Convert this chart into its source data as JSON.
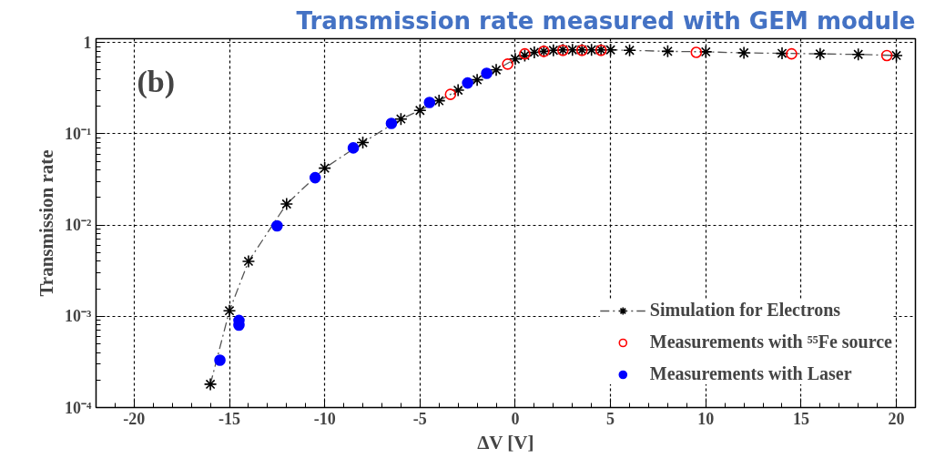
{
  "chart_data": {
    "type": "line",
    "title": "Transmission rate measured with GEM module",
    "xlabel": "ΔV [V]",
    "ylabel": "Transmission rate",
    "annotations": [
      "(b)"
    ],
    "log": "y",
    "grid": true,
    "legend": "bottom right",
    "xlim": [
      -22,
      21
    ],
    "xticks": [
      -20,
      -15,
      -10,
      -5,
      0,
      5,
      10,
      15,
      20
    ],
    "ylim": [
      0.0001,
      1.1
    ],
    "yticks": [
      {
        "value": 0.0001,
        "label": "10⁻⁴"
      },
      {
        "value": 0.001,
        "label": "10⁻³"
      },
      {
        "value": 0.01,
        "label": "10⁻²"
      },
      {
        "value": 0.1,
        "label": "10⁻¹"
      },
      1
    ],
    "series": [
      {
        "name": "Simulation for Electrons",
        "color": "#000000",
        "marker": "cross",
        "line_style": "dashed",
        "x": [
          -16,
          -15,
          -14,
          -12,
          -10,
          -8,
          -6,
          -5,
          -4,
          -3,
          -2,
          -1,
          0,
          0.5,
          1,
          1.5,
          2,
          2.5,
          3,
          3.5,
          4,
          4.5,
          5,
          6,
          8,
          10,
          12,
          14,
          16,
          18,
          20
        ],
        "values": [
          0.00018,
          0.00115,
          0.004,
          0.017,
          0.042,
          0.08,
          0.145,
          0.18,
          0.23,
          0.3,
          0.39,
          0.5,
          0.66,
          0.72,
          0.78,
          0.8,
          0.82,
          0.83,
          0.83,
          0.83,
          0.83,
          0.83,
          0.83,
          0.82,
          0.8,
          0.79,
          0.77,
          0.76,
          0.75,
          0.74,
          0.72
        ]
      },
      {
        "name": "Measurements with ⁵⁵Fe source",
        "type": "scatter",
        "color": "#ff0000",
        "marker": "circle_open",
        "x": [
          -3.4,
          -0.4,
          0.5,
          1.5,
          2.5,
          3.5,
          4.5,
          9.5,
          14.5,
          19.5
        ],
        "values": [
          0.27,
          0.58,
          0.75,
          0.8,
          0.82,
          0.82,
          0.82,
          0.78,
          0.75,
          0.72
        ]
      },
      {
        "name": "Measurements with Laser",
        "type": "scatter",
        "color": "#0000ff",
        "marker": "circle",
        "x": [
          -15.5,
          -14.5,
          -14.5,
          -12.5,
          -10.5,
          -8.5,
          -6.5,
          -4.5,
          -2.5,
          -1.5
        ],
        "values": [
          0.00033,
          0.0009,
          0.0008,
          0.0098,
          0.033,
          0.07,
          0.13,
          0.22,
          0.36,
          0.46
        ]
      }
    ]
  }
}
